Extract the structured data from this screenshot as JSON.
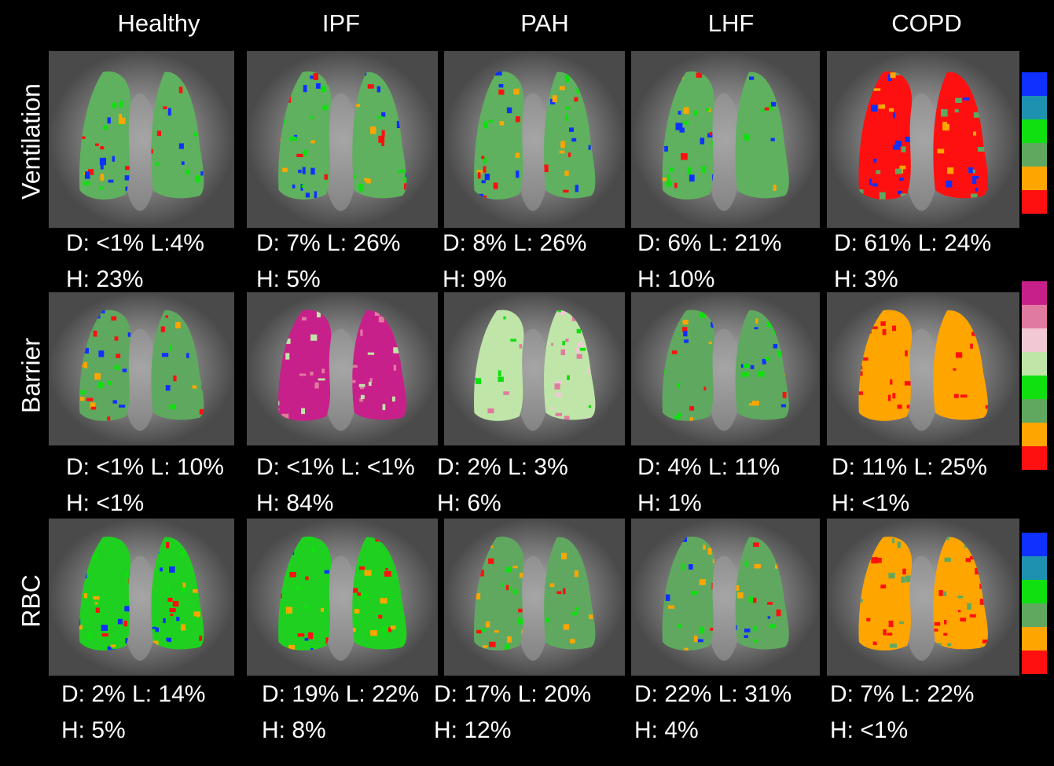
{
  "columns": [
    {
      "id": "healthy",
      "label": "Healthy"
    },
    {
      "id": "ipf",
      "label": "IPF"
    },
    {
      "id": "pah",
      "label": "PAH"
    },
    {
      "id": "lhf",
      "label": "LHF"
    },
    {
      "id": "copd",
      "label": "COPD"
    }
  ],
  "rows": [
    {
      "id": "ventilation",
      "label": "Ventilation"
    },
    {
      "id": "barrier",
      "label": "Barrier"
    },
    {
      "id": "rbc",
      "label": "RBC"
    }
  ],
  "stats": {
    "ventilation": [
      {
        "line1": "D: <1% L:4%",
        "line2": "H: 23%"
      },
      {
        "line1": "D: 7% L: 26%",
        "line2": "H: 5%"
      },
      {
        "line1": "D: 8% L: 26%",
        "line2": "H: 9%"
      },
      {
        "line1": "D: 6% L: 21%",
        "line2": "H: 10%"
      },
      {
        "line1": "D: 61% L: 24%",
        "line2": "H: 3%"
      }
    ],
    "barrier": [
      {
        "line1": "D: <1% L: 10%",
        "line2": "H: <1%"
      },
      {
        "line1": "D: <1% L: <1%",
        "line2": "H: 84%"
      },
      {
        "line1": "D: 2% L: 3%",
        "line2": "H: 6%"
      },
      {
        "line1": "D: 4% L: 11%",
        "line2": "H: 1%"
      },
      {
        "line1": "D: 11% L: 25%",
        "line2": "H: <1%"
      }
    ],
    "rbc": [
      {
        "line1": "D: 2% L: 14%",
        "line2": "H: 5%"
      },
      {
        "line1": "D: 19% L: 22%",
        "line2": "H: 8%"
      },
      {
        "line1": "D: 17% L: 20%",
        "line2": "H: 12%"
      },
      {
        "line1": "D: 22% L: 31%",
        "line2": "H: 4%"
      },
      {
        "line1": "D: 7% L: 22%",
        "line2": "H: <1%"
      }
    ]
  },
  "scales": {
    "six_bin": [
      "#1030ff",
      "#1e90b0",
      "#10e010",
      "#60a860",
      "#ffa500",
      "#ff1010"
    ],
    "eight_bin": [
      "#c8208a",
      "#e07aa0",
      "#f2c8d4",
      "#bfe6a8",
      "#10e010",
      "#60a860",
      "#ffa500",
      "#ff1010"
    ]
  }
}
